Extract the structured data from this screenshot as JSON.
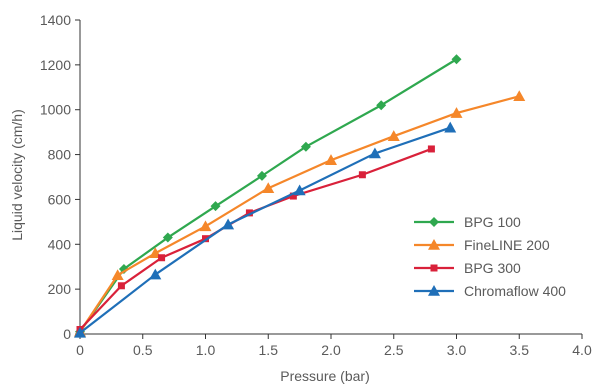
{
  "chart_data": {
    "type": "line",
    "title": "",
    "xlabel": "Pressure (bar)",
    "ylabel": "Liquid velocity (cm/h)",
    "xlim": [
      0,
      4.0
    ],
    "ylim": [
      0,
      1400
    ],
    "xticks": [
      0,
      0.5,
      1.0,
      1.5,
      2.0,
      2.5,
      3.0,
      3.5,
      4.0
    ],
    "xtick_labels": [
      "0",
      "0.5",
      "1.0",
      "1.5",
      "2.0",
      "2.5",
      "3.0",
      "3.5",
      "4.0"
    ],
    "yticks": [
      0,
      200,
      400,
      600,
      800,
      1000,
      1200,
      1400
    ],
    "ytick_labels": [
      "0",
      "200",
      "400",
      "600",
      "800",
      "1000",
      "1200",
      "1400"
    ],
    "grid": false,
    "legend_position": "right",
    "series": [
      {
        "name": "BPG 100",
        "color": "#2fa84f",
        "marker": "diamond",
        "x": [
          0.0,
          0.35,
          0.7,
          1.08,
          1.45,
          1.8,
          2.4,
          3.0
        ],
        "y": [
          10,
          290,
          430,
          570,
          705,
          835,
          1020,
          1225
        ]
      },
      {
        "name": "FineLINE 200",
        "color": "#f5872a",
        "marker": "triangle",
        "x": [
          0.0,
          0.3,
          0.6,
          1.0,
          1.5,
          2.0,
          2.5,
          3.0,
          3.5
        ],
        "y": [
          10,
          262,
          360,
          480,
          650,
          775,
          882,
          985,
          1060
        ]
      },
      {
        "name": "BPG 300",
        "color": "#d9213a",
        "marker": "square",
        "x": [
          0.0,
          0.33,
          0.65,
          1.0,
          1.35,
          1.7,
          2.25,
          2.8
        ],
        "y": [
          20,
          215,
          340,
          425,
          540,
          615,
          710,
          825
        ]
      },
      {
        "name": "Chromaflow 400",
        "color": "#1f6fb8",
        "marker": "triangle",
        "x": [
          0.0,
          0.6,
          1.18,
          1.75,
          2.35,
          2.95
        ],
        "y": [
          5,
          265,
          488,
          640,
          805,
          920
        ]
      }
    ]
  }
}
